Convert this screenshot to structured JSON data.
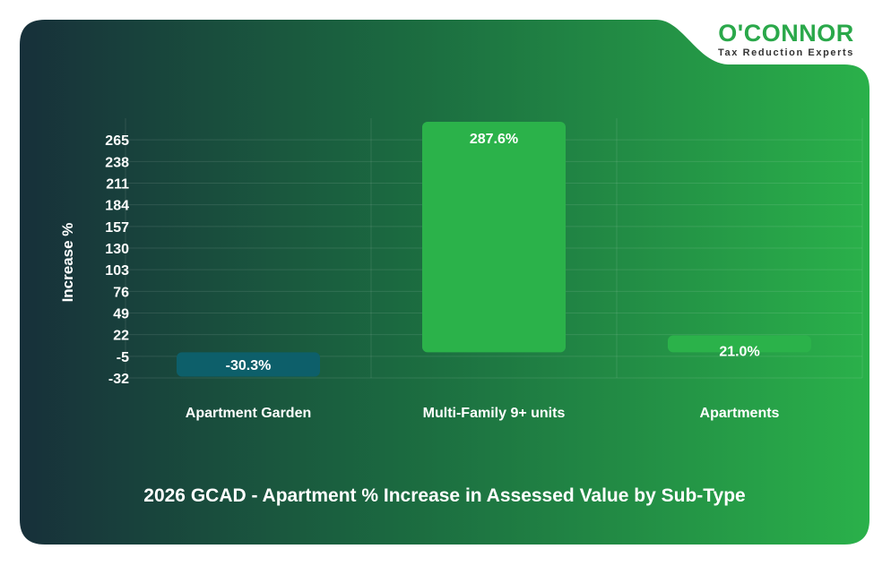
{
  "logo": {
    "name": "O'CONNOR",
    "tagline": "Tax Reduction Experts"
  },
  "colors": {
    "positive_bar": "#2bb24a",
    "negative_bar": "#0d5f6a",
    "card_dark": "#17303a",
    "card_light": "#2ab14a"
  },
  "chart_data": {
    "type": "bar",
    "title": "2026 GCAD - Apartment % Increase in Assessed Value by Sub-Type",
    "xlabel": "",
    "ylabel": "Increase %",
    "categories": [
      "Apartment Garden",
      "Multi-Family 9+ units",
      "Apartments"
    ],
    "values": [
      -30.3,
      287.6,
      21.0
    ],
    "data_labels": [
      "-30.3%",
      "287.6%",
      "21.0%"
    ],
    "yticks": [
      -32,
      -5,
      22,
      49,
      76,
      103,
      130,
      157,
      184,
      211,
      238,
      265
    ],
    "ylim": [
      -32,
      292
    ],
    "grid": true,
    "legend": "none"
  }
}
